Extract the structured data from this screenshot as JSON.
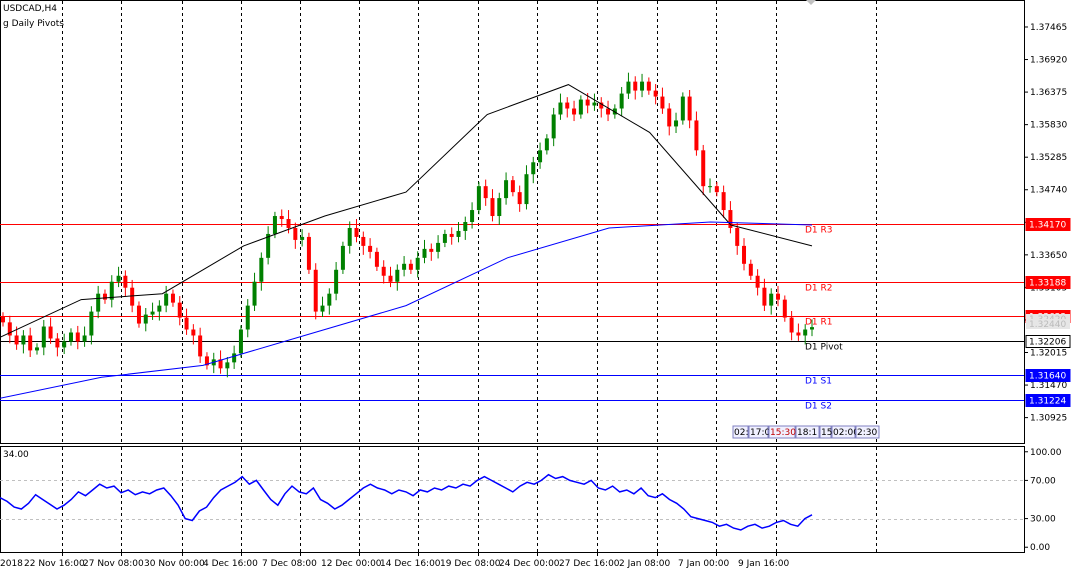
{
  "chart_header": {
    "symbol": "USDCAD,H4",
    "indicator": "g Daily Pivots"
  },
  "colors": {
    "bull": "#008000",
    "bear": "#ff0000",
    "resistance": "#ff0000",
    "support": "#0000ff",
    "pivot": "#000000",
    "ma_fast": "#000000",
    "ma_slow": "#0000ff",
    "oscillator": "#0000ff",
    "grid": "#000000"
  },
  "chart_data": [
    {
      "type": "candlestick",
      "symbol": "USDCAD",
      "timeframe": "H4",
      "y_ticks": [
        "1.37465",
        "1.36920",
        "1.36375",
        "1.35830",
        "1.35285",
        "1.34740",
        "1.34195",
        "1.33650",
        "1.33105",
        "1.32560",
        "1.32015",
        "1.31470",
        "1.30925"
      ],
      "x_ticks": [
        "2018",
        "22 Nov 16:00",
        "27 Nov 08:00",
        "30 Nov 00:00",
        "4 Dec 16:00",
        "7 Dec 08:00",
        "12 Dec 00:00",
        "14 Dec 16:00",
        "19 Dec 08:00",
        "24 Dec 00:00",
        "27 Dec 16:00",
        "2 Jan 08:00",
        "7 Jan 00:00",
        "9 Jan 16:00"
      ],
      "ylim": [
        1.305,
        1.379
      ],
      "price_levels": [
        {
          "name": "D1 R3",
          "value": 1.3417,
          "badge": "1.34170",
          "kind": "resistance"
        },
        {
          "name": "D1 R2",
          "value": 1.33188,
          "badge": "1.33188",
          "kind": "resistance"
        },
        {
          "name": "D1 R1",
          "value": 1.32622,
          "badge": "1.32622",
          "kind": "resistance"
        },
        {
          "name": "D1 Pivot",
          "value": 1.32206,
          "badge": "1.32206",
          "kind": "pivot"
        },
        {
          "name": "D1 S1",
          "value": 1.3164,
          "badge": "1.31640",
          "kind": "support"
        },
        {
          "name": "D1 S2",
          "value": 1.31224,
          "badge": "1.31224",
          "kind": "support"
        }
      ],
      "current_price_labels": [
        "1.32420",
        "1.32440"
      ],
      "time_labels": [
        "02:",
        "17:0",
        "15:30",
        "18:1",
        "15",
        "02:00",
        "2:30"
      ],
      "series": [
        {
          "name": "close",
          "values": [
            1.3252,
            1.323,
            1.3215,
            1.323,
            1.3205,
            1.321,
            1.3245,
            1.3225,
            1.321,
            1.322,
            1.3235,
            1.322,
            1.323,
            1.327,
            1.33,
            1.329,
            1.332,
            1.333,
            1.331,
            1.328,
            1.325,
            1.3265,
            1.327,
            1.328,
            1.33,
            1.3285,
            1.326,
            1.324,
            1.323,
            1.3195,
            1.318,
            1.319,
            1.3175,
            1.3185,
            1.32,
            1.324,
            1.328,
            1.332,
            1.336,
            1.34,
            1.343,
            1.3425,
            1.341,
            1.339,
            1.3395,
            1.334,
            1.327,
            1.328,
            1.33,
            1.334,
            1.338,
            1.341,
            1.3395,
            1.338,
            1.337,
            1.3345,
            1.333,
            1.332,
            1.334,
            1.335,
            1.334,
            1.336,
            1.3375,
            1.337,
            1.3385,
            1.34,
            1.3395,
            1.3405,
            1.342,
            1.344,
            1.348,
            1.346,
            1.343,
            1.346,
            1.349,
            1.347,
            1.345,
            1.35,
            1.352,
            1.354,
            1.356,
            1.36,
            1.362,
            1.361,
            1.36,
            1.3625,
            1.3615,
            1.362,
            1.361,
            1.36,
            1.361,
            1.3635,
            1.3655,
            1.364,
            1.3655,
            1.364,
            1.363,
            1.361,
            1.358,
            1.359,
            1.363,
            1.359,
            1.354,
            1.348,
            1.348,
            1.347,
            1.344,
            1.341,
            1.338,
            1.335,
            1.333,
            1.331,
            1.328,
            1.33,
            1.329,
            1.326,
            1.3235,
            1.323,
            1.324,
            1.3244
          ]
        },
        {
          "name": "ma_fast",
          "values": [
            1.3227,
            1.329,
            1.33,
            1.338,
            1.343,
            1.347,
            1.36,
            1.365,
            1.357,
            1.3415,
            1.338
          ]
        },
        {
          "name": "ma_slow",
          "values": [
            1.3125,
            1.316,
            1.318,
            1.323,
            1.328,
            1.336,
            1.341,
            1.342,
            1.3415
          ]
        }
      ]
    },
    {
      "type": "line",
      "title": "34.00",
      "y_ticks": [
        "100.00",
        "70.00",
        "30.00",
        "0.00"
      ],
      "ylim": [
        -5,
        105
      ],
      "reference_levels": [
        70,
        30
      ],
      "series": [
        {
          "name": "oscillator",
          "values": [
            52,
            48,
            42,
            40,
            46,
            55,
            50,
            45,
            40,
            44,
            50,
            58,
            54,
            60,
            66,
            62,
            64,
            57,
            60,
            55,
            58,
            56,
            60,
            62,
            54,
            44,
            30,
            28,
            38,
            42,
            52,
            60,
            64,
            68,
            74,
            66,
            70,
            60,
            50,
            44,
            56,
            64,
            58,
            56,
            62,
            50,
            46,
            40,
            44,
            50,
            56,
            62,
            66,
            62,
            60,
            56,
            60,
            58,
            54,
            60,
            58,
            62,
            60,
            64,
            62,
            66,
            64,
            70,
            74,
            70,
            66,
            62,
            58,
            64,
            68,
            66,
            70,
            76,
            72,
            74,
            70,
            68,
            66,
            70,
            62,
            60,
            64,
            58,
            60,
            56,
            62,
            54,
            52,
            56,
            50,
            46,
            40,
            32,
            30,
            28,
            26,
            22,
            24,
            20,
            18,
            22,
            24,
            20,
            22,
            26,
            28,
            24,
            22,
            30,
            34
          ]
        }
      ]
    }
  ]
}
